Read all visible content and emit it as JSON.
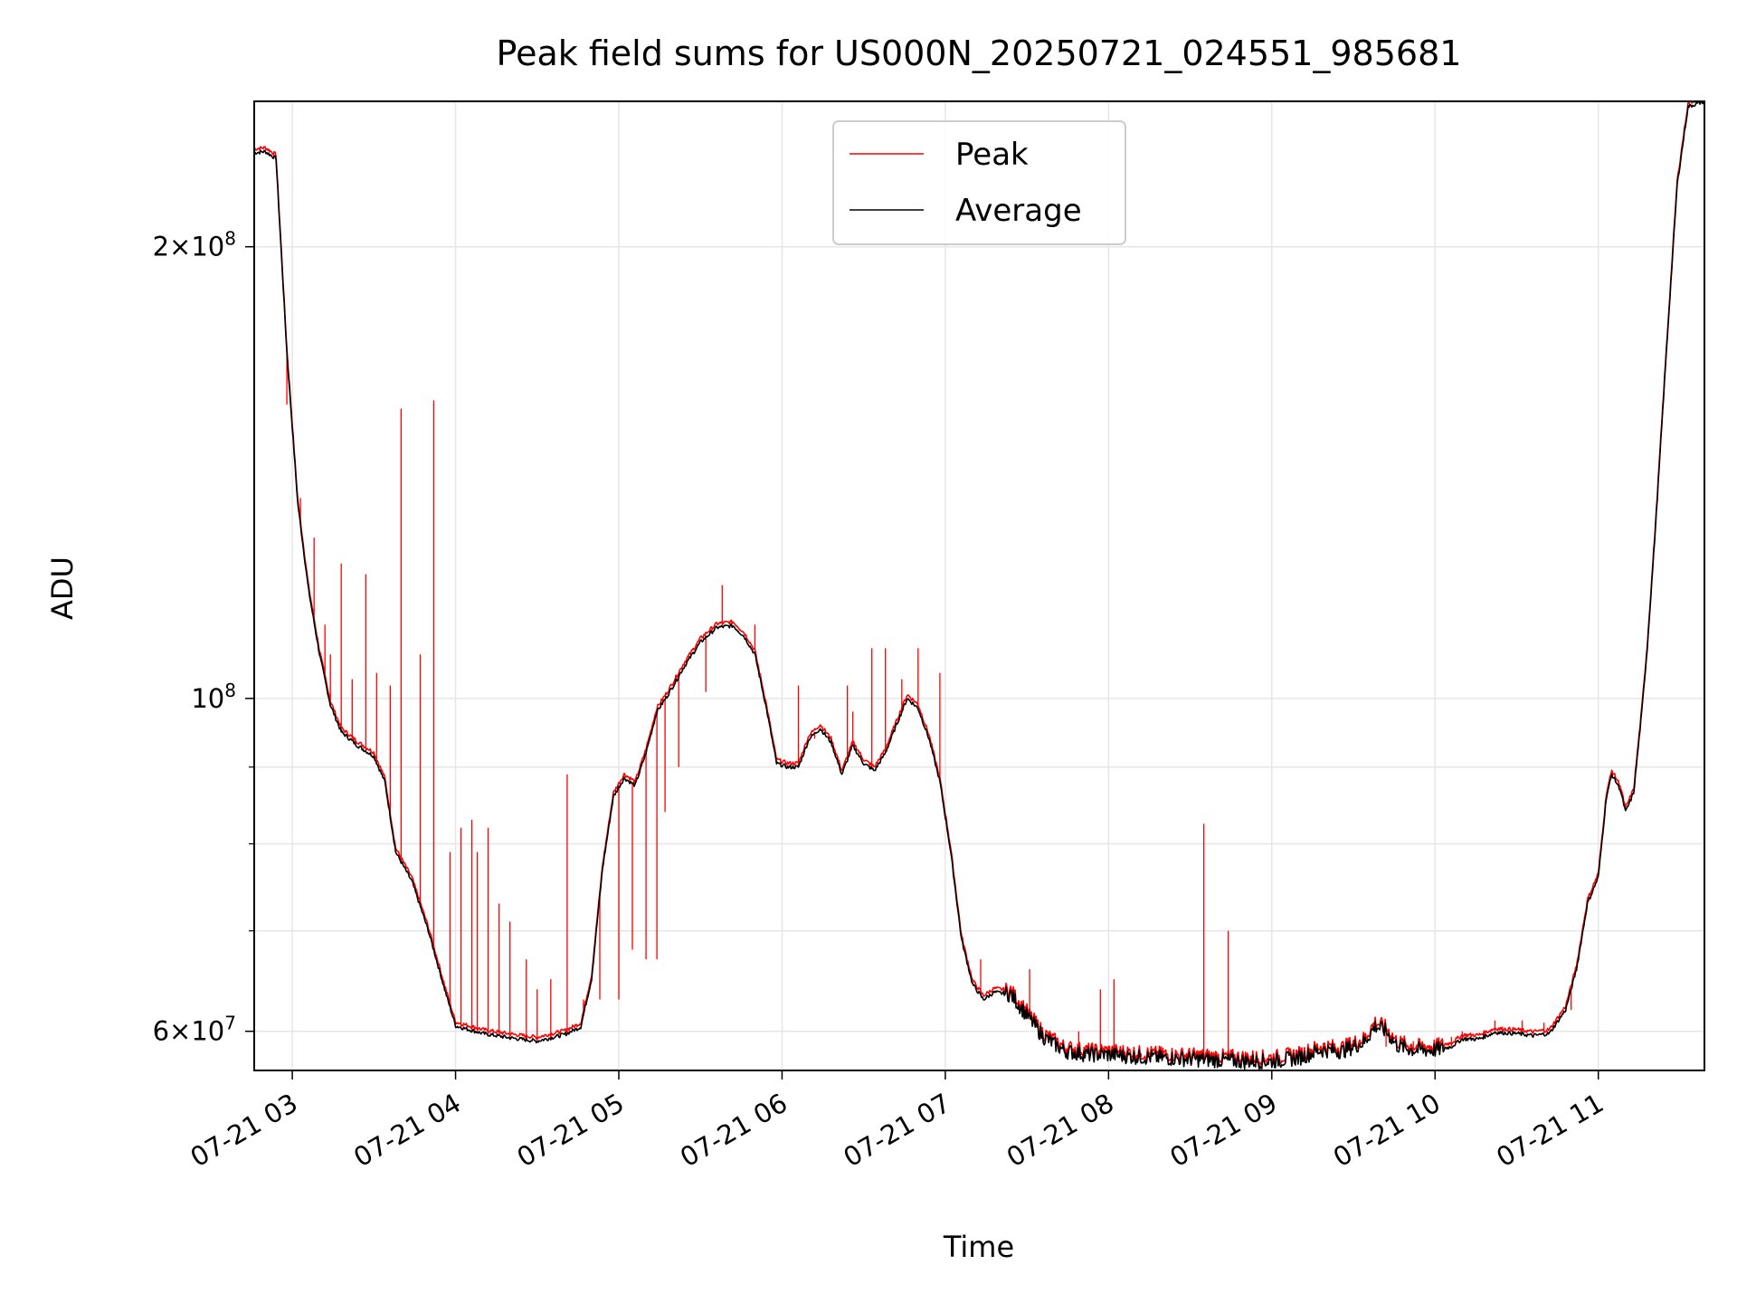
{
  "chart_data": {
    "type": "line",
    "title": "Peak field sums for US000N_20250721_024551_985681",
    "xlabel": "Time",
    "ylabel": "ADU",
    "yscale": "log",
    "xlim": [
      "2025-07-21 02:46",
      "2025-07-21 11:39"
    ],
    "ylim": [
      56500000,
      250000000
    ],
    "grid": true,
    "legend": {
      "placement": "top-center"
    },
    "x_ticks": [
      {
        "t": "2025-07-21 03:00",
        "label": "07-21 03"
      },
      {
        "t": "2025-07-21 04:00",
        "label": "07-21 04"
      },
      {
        "t": "2025-07-21 05:00",
        "label": "07-21 05"
      },
      {
        "t": "2025-07-21 06:00",
        "label": "07-21 06"
      },
      {
        "t": "2025-07-21 07:00",
        "label": "07-21 07"
      },
      {
        "t": "2025-07-21 08:00",
        "label": "07-21 08"
      },
      {
        "t": "2025-07-21 09:00",
        "label": "07-21 09"
      },
      {
        "t": "2025-07-21 10:00",
        "label": "07-21 10"
      },
      {
        "t": "2025-07-21 11:00",
        "label": "07-21 11"
      }
    ],
    "y_major_ticks": [
      {
        "v": 60000000,
        "mant": "6",
        "exp": "7"
      },
      {
        "v": 100000000,
        "mant": "",
        "exp": "8"
      },
      {
        "v": 200000000,
        "mant": "2",
        "exp": "8"
      }
    ],
    "y_minor_ticks": [
      70000000,
      80000000,
      90000000
    ],
    "series": [
      {
        "name": "Average",
        "color": "#000000",
        "points": [
          [
            "2025-07-21 02:46",
            231000000
          ],
          [
            "2025-07-21 02:50",
            231500000
          ],
          [
            "2025-07-21 02:54",
            229000000
          ],
          [
            "2025-07-21 02:58",
            170000000
          ],
          [
            "2025-07-21 03:02",
            135000000
          ],
          [
            "2025-07-21 03:06",
            118000000
          ],
          [
            "2025-07-21 03:10",
            107000000
          ],
          [
            "2025-07-21 03:14",
            99000000
          ],
          [
            "2025-07-21 03:18",
            95000000
          ],
          [
            "2025-07-21 03:24",
            93000000
          ],
          [
            "2025-07-21 03:30",
            91500000
          ],
          [
            "2025-07-21 03:34",
            88000000
          ],
          [
            "2025-07-21 03:38",
            79000000
          ],
          [
            "2025-07-21 03:44",
            75500000
          ],
          [
            "2025-07-21 03:50",
            70000000
          ],
          [
            "2025-07-21 03:56",
            64000000
          ],
          [
            "2025-07-21 04:00",
            60500000
          ],
          [
            "2025-07-21 04:10",
            59800000
          ],
          [
            "2025-07-21 04:20",
            59400000
          ],
          [
            "2025-07-21 04:30",
            59100000
          ],
          [
            "2025-07-21 04:40",
            59700000
          ],
          [
            "2025-07-21 04:46",
            60400000
          ],
          [
            "2025-07-21 04:50",
            65000000
          ],
          [
            "2025-07-21 04:54",
            77000000
          ],
          [
            "2025-07-21 04:58",
            86000000
          ],
          [
            "2025-07-21 05:02",
            88500000
          ],
          [
            "2025-07-21 05:06",
            87500000
          ],
          [
            "2025-07-21 05:10",
            92000000
          ],
          [
            "2025-07-21 05:14",
            98000000
          ],
          [
            "2025-07-21 05:18",
            100500000
          ],
          [
            "2025-07-21 05:24",
            105000000
          ],
          [
            "2025-07-21 05:30",
            109000000
          ],
          [
            "2025-07-21 05:36",
            111500000
          ],
          [
            "2025-07-21 05:42",
            111800000
          ],
          [
            "2025-07-21 05:46",
            110000000
          ],
          [
            "2025-07-21 05:50",
            107000000
          ],
          [
            "2025-07-21 05:54",
            99000000
          ],
          [
            "2025-07-21 05:58",
            90500000
          ],
          [
            "2025-07-21 06:02",
            90000000
          ],
          [
            "2025-07-21 06:06",
            90000000
          ],
          [
            "2025-07-21 06:10",
            94000000
          ],
          [
            "2025-07-21 06:14",
            95500000
          ],
          [
            "2025-07-21 06:18",
            93500000
          ],
          [
            "2025-07-21 06:22",
            89000000
          ],
          [
            "2025-07-21 06:26",
            93000000
          ],
          [
            "2025-07-21 06:30",
            90500000
          ],
          [
            "2025-07-21 06:34",
            89500000
          ],
          [
            "2025-07-21 06:38",
            92000000
          ],
          [
            "2025-07-21 06:42",
            96000000
          ],
          [
            "2025-07-21 06:46",
            100000000
          ],
          [
            "2025-07-21 06:50",
            98500000
          ],
          [
            "2025-07-21 06:54",
            94000000
          ],
          [
            "2025-07-21 06:58",
            88000000
          ],
          [
            "2025-07-21 07:02",
            79000000
          ],
          [
            "2025-07-21 07:06",
            69000000
          ],
          [
            "2025-07-21 07:10",
            64500000
          ],
          [
            "2025-07-21 07:14",
            63000000
          ],
          [
            "2025-07-21 07:18",
            63700000
          ],
          [
            "2025-07-21 07:24",
            63500000
          ],
          [
            "2025-07-21 07:30",
            61500000
          ],
          [
            "2025-07-21 07:36",
            59500000
          ],
          [
            "2025-07-21 07:44",
            58200000
          ],
          [
            "2025-07-21 07:52",
            57900000
          ],
          [
            "2025-07-21 08:00",
            57900000
          ],
          [
            "2025-07-21 08:10",
            57700000
          ],
          [
            "2025-07-21 08:20",
            57600000
          ],
          [
            "2025-07-21 08:30",
            57500000
          ],
          [
            "2025-07-21 08:40",
            57400000
          ],
          [
            "2025-07-21 08:50",
            57300000
          ],
          [
            "2025-07-21 09:00",
            57300000
          ],
          [
            "2025-07-21 09:10",
            57600000
          ],
          [
            "2025-07-21 09:18",
            58300000
          ],
          [
            "2025-07-21 09:26",
            58200000
          ],
          [
            "2025-07-21 09:34",
            59000000
          ],
          [
            "2025-07-21 09:38",
            60500000
          ],
          [
            "2025-07-21 09:42",
            60000000
          ],
          [
            "2025-07-21 09:46",
            58700000
          ],
          [
            "2025-07-21 09:52",
            58300000
          ],
          [
            "2025-07-21 10:00",
            58300000
          ],
          [
            "2025-07-21 10:06",
            58600000
          ],
          [
            "2025-07-21 10:10",
            59300000
          ],
          [
            "2025-07-21 10:16",
            59300000
          ],
          [
            "2025-07-21 10:22",
            59900000
          ],
          [
            "2025-07-21 10:30",
            59800000
          ],
          [
            "2025-07-21 10:36",
            59600000
          ],
          [
            "2025-07-21 10:42",
            59800000
          ],
          [
            "2025-07-21 10:48",
            62000000
          ],
          [
            "2025-07-21 10:52",
            66000000
          ],
          [
            "2025-07-21 10:56",
            73000000
          ],
          [
            "2025-07-21 11:00",
            76000000
          ],
          [
            "2025-07-21 11:03",
            86000000
          ],
          [
            "2025-07-21 11:05",
            89000000
          ],
          [
            "2025-07-21 11:08",
            87000000
          ],
          [
            "2025-07-21 11:10",
            84000000
          ],
          [
            "2025-07-21 11:13",
            86500000
          ],
          [
            "2025-07-21 11:16",
            98000000
          ],
          [
            "2025-07-21 11:18",
            108000000
          ],
          [
            "2025-07-21 11:21",
            130000000
          ],
          [
            "2025-07-21 11:25",
            170000000
          ],
          [
            "2025-07-21 11:29",
            220000000
          ],
          [
            "2025-07-21 11:33",
            248000000
          ],
          [
            "2025-07-21 11:39",
            250000000
          ]
        ]
      },
      {
        "name": "Peak",
        "color": "#ff0000",
        "spikes": [
          [
            "2025-07-21 02:58",
            157000000
          ],
          [
            "2025-07-21 03:03",
            136000000
          ],
          [
            "2025-07-21 03:08",
            128000000
          ],
          [
            "2025-07-21 03:12",
            112000000
          ],
          [
            "2025-07-21 03:14",
            107000000
          ],
          [
            "2025-07-21 03:18",
            123000000
          ],
          [
            "2025-07-21 03:22",
            103000000
          ],
          [
            "2025-07-21 03:27",
            121000000
          ],
          [
            "2025-07-21 03:31",
            104000000
          ],
          [
            "2025-07-21 03:36",
            102000000
          ],
          [
            "2025-07-21 03:40",
            156000000
          ],
          [
            "2025-07-21 03:47",
            107000000
          ],
          [
            "2025-07-21 03:52",
            158000000
          ],
          [
            "2025-07-21 03:58",
            79000000
          ],
          [
            "2025-07-21 04:02",
            82000000
          ],
          [
            "2025-07-21 04:06",
            83000000
          ],
          [
            "2025-07-21 04:08",
            79000000
          ],
          [
            "2025-07-21 04:12",
            82000000
          ],
          [
            "2025-07-21 04:16",
            73000000
          ],
          [
            "2025-07-21 04:20",
            71000000
          ],
          [
            "2025-07-21 04:26",
            67000000
          ],
          [
            "2025-07-21 04:30",
            64000000
          ],
          [
            "2025-07-21 04:35",
            65000000
          ],
          [
            "2025-07-21 04:41",
            89000000
          ],
          [
            "2025-07-21 04:47",
            63000000
          ],
          [
            "2025-07-21 04:53",
            63000000
          ],
          [
            "2025-07-21 05:00",
            63000000
          ],
          [
            "2025-07-21 05:05",
            68000000
          ],
          [
            "2025-07-21 05:10",
            67000000
          ],
          [
            "2025-07-21 05:14",
            67000000
          ],
          [
            "2025-07-21 05:17",
            84000000
          ],
          [
            "2025-07-21 05:22",
            90000000
          ],
          [
            "2025-07-21 05:32",
            101000000
          ],
          [
            "2025-07-21 05:38",
            119000000
          ],
          [
            "2025-07-21 05:44",
            111000000
          ],
          [
            "2025-07-21 05:50",
            112000000
          ],
          [
            "2025-07-21 06:06",
            102000000
          ],
          [
            "2025-07-21 06:12",
            94000000
          ],
          [
            "2025-07-21 06:24",
            102000000
          ],
          [
            "2025-07-21 06:26",
            98000000
          ],
          [
            "2025-07-21 06:33",
            108000000
          ],
          [
            "2025-07-21 06:38",
            108000000
          ],
          [
            "2025-07-21 06:44",
            103000000
          ],
          [
            "2025-07-21 06:50",
            108000000
          ],
          [
            "2025-07-21 06:58",
            104000000
          ],
          [
            "2025-07-21 07:13",
            67000000
          ],
          [
            "2025-07-21 07:31",
            66000000
          ],
          [
            "2025-07-21 07:49",
            60000000
          ],
          [
            "2025-07-21 07:57",
            64000000
          ],
          [
            "2025-07-21 08:02",
            65000000
          ],
          [
            "2025-07-21 08:12",
            58000000
          ],
          [
            "2025-07-21 08:20",
            58500000
          ],
          [
            "2025-07-21 08:35",
            82500000
          ],
          [
            "2025-07-21 08:44",
            70000000
          ],
          [
            "2025-07-21 09:42",
            58600000
          ],
          [
            "2025-07-21 09:52",
            59100000
          ],
          [
            "2025-07-21 10:06",
            59500000
          ],
          [
            "2025-07-21 10:10",
            60000000
          ],
          [
            "2025-07-21 10:22",
            61000000
          ],
          [
            "2025-07-21 10:32",
            61000000
          ],
          [
            "2025-07-21 10:40",
            60800000
          ],
          [
            "2025-07-21 10:50",
            62000000
          ]
        ]
      }
    ]
  }
}
